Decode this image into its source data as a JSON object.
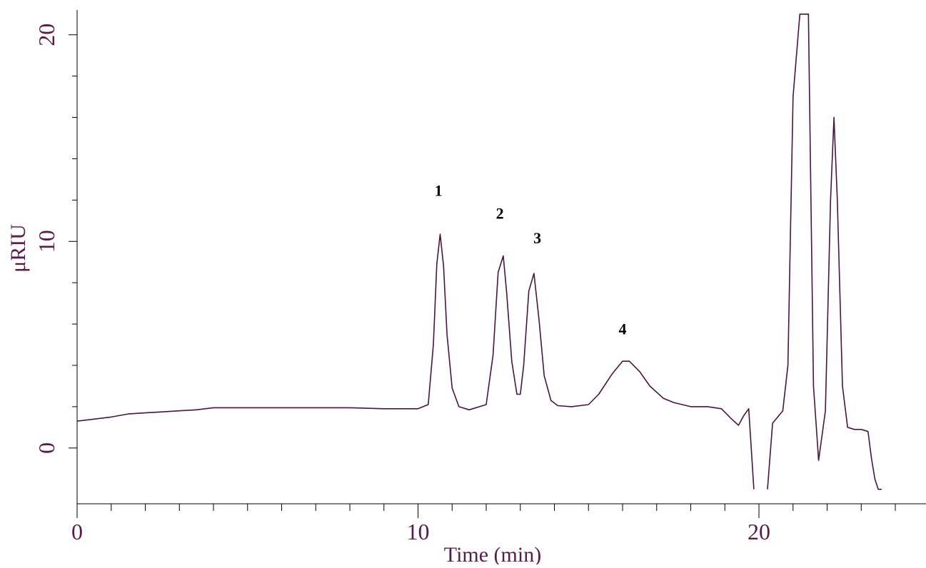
{
  "colors": {
    "trace": "#4a1440",
    "axis": "#000000",
    "axis_text": "#5a1a4a",
    "peak_label": "#000000"
  },
  "chart_data": {
    "type": "line",
    "title": "",
    "xlabel": "Time (min)",
    "ylabel": "μRIU",
    "xlim": [
      0,
      24.9
    ],
    "ylim": [
      -2.7,
      21.2
    ],
    "x_ticks": [
      0,
      10,
      20
    ],
    "x_tick_labels": [
      "0",
      "10",
      "20"
    ],
    "y_ticks": [
      0,
      10,
      20
    ],
    "y_tick_labels": [
      "0",
      "10",
      "20"
    ],
    "grid": false,
    "legend": "none",
    "series": [
      {
        "x": [
          0,
          0.5,
          1.0,
          1.5,
          2.0,
          2.5,
          3.0,
          3.5,
          4.0,
          4.5,
          5.0,
          5.5,
          6.0,
          7.0,
          8.0,
          9.0,
          10.0,
          10.3,
          10.45,
          10.55,
          10.65,
          10.75,
          10.85,
          11.0,
          11.2,
          11.5,
          12.0,
          12.2,
          12.35,
          12.5,
          12.6,
          12.75,
          12.9,
          13.0,
          13.1,
          13.25,
          13.4,
          13.55,
          13.7,
          13.9,
          14.1,
          14.5,
          15.0,
          15.3,
          15.7,
          16.0,
          16.2,
          16.5,
          16.8,
          17.2,
          17.5,
          18.0,
          18.5,
          18.9,
          19.2,
          19.4,
          19.55,
          19.7,
          19.85,
          20.25,
          20.4,
          20.7,
          20.85,
          21.0,
          21.2,
          21.45,
          21.6,
          21.75,
          21.95,
          22.1,
          22.2,
          22.3,
          22.45,
          22.6,
          22.8,
          23.0,
          23.2,
          23.3,
          23.4,
          23.5,
          23.6
        ],
        "y": [
          1.3,
          1.4,
          1.5,
          1.65,
          1.7,
          1.75,
          1.8,
          1.85,
          1.95,
          1.95,
          1.95,
          1.95,
          1.95,
          1.95,
          1.95,
          1.9,
          1.9,
          2.1,
          5.0,
          8.9,
          10.35,
          8.8,
          5.5,
          2.9,
          2.0,
          1.85,
          2.1,
          4.5,
          8.5,
          9.3,
          7.5,
          4.2,
          2.6,
          2.6,
          4.0,
          7.6,
          8.45,
          6.2,
          3.5,
          2.3,
          2.05,
          2.0,
          2.1,
          2.6,
          3.6,
          4.2,
          4.2,
          3.7,
          3.0,
          2.4,
          2.2,
          2.0,
          2.0,
          1.9,
          1.4,
          1.1,
          1.55,
          1.9,
          -2.0,
          -2.0,
          1.2,
          1.8,
          4.0,
          17.0,
          21.0,
          21.0,
          3.0,
          -0.6,
          1.8,
          12.0,
          16.0,
          12.0,
          3.0,
          1.0,
          0.9,
          0.9,
          0.8,
          -0.5,
          -1.5,
          -2.0,
          -2.0
        ]
      }
    ],
    "annotations": [
      {
        "text": "1",
        "x": 10.6,
        "y": 12.2
      },
      {
        "text": "2",
        "x": 12.4,
        "y": 11.1
      },
      {
        "text": "3",
        "x": 13.5,
        "y": 9.9
      },
      {
        "text": "4",
        "x": 16.0,
        "y": 5.5
      }
    ]
  }
}
